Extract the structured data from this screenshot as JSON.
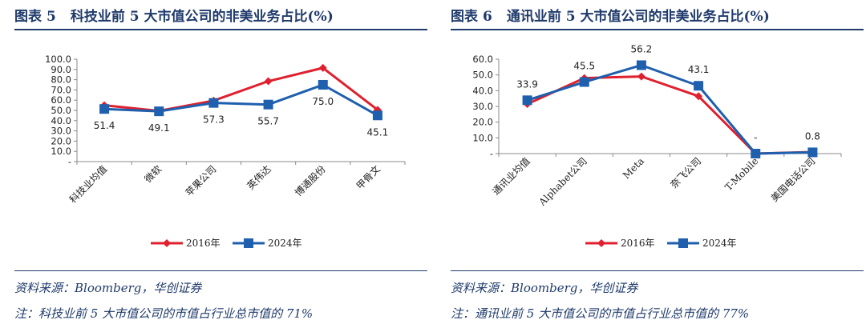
{
  "colors": {
    "series_2016": "#e0202e",
    "series_2024": "#1e5fae",
    "title": "#1f3a6b"
  },
  "panels": [
    {
      "title_prefix": "图表",
      "title_num": "5",
      "title_text": "科技业前 5 大市值公司的非美业务占比(%)",
      "source": "资料来源：Bloomberg，华创证券",
      "note": "注：科技业前 5 大市值公司的市值占行业总市值的 71%",
      "chart_data": {
        "type": "line",
        "categories": [
          "科技业均值",
          "微软",
          "苹果公司",
          "英伟达",
          "博通股份",
          "甲骨文"
        ],
        "y_ticks": [
          "100.0",
          "90.0",
          "80.0",
          "70.0",
          "60.0",
          "50.0",
          "40.0",
          "30.0",
          "20.0",
          "10.0",
          "-"
        ],
        "ylim": [
          0,
          100
        ],
        "series": [
          {
            "name": "2016年",
            "values": [
              55.0,
              49.5,
              59.5,
              78.5,
              91.5,
              50.5
            ]
          },
          {
            "name": "2024年",
            "values": [
              51.4,
              49.1,
              57.3,
              55.7,
              75.0,
              45.1
            ]
          }
        ],
        "data_labels": [
          "51.4",
          "49.1",
          "57.3",
          "55.7",
          "75.0",
          "45.1"
        ],
        "legend": "bottom-center"
      }
    },
    {
      "title_prefix": "图表",
      "title_num": "6",
      "title_text": "通讯业前 5 大市值公司的非美业务占比(%)",
      "source": "资料来源：Bloomberg，华创证券",
      "note": "注：通讯业前 5 大市值公司的市值占行业总市值的 77%",
      "chart_data": {
        "type": "line",
        "categories": [
          "通讯业均值",
          "Alphabet公司",
          "Meta",
          "奈飞公司",
          "T-Mobile",
          "美国电话公司"
        ],
        "y_ticks": [
          "60.0",
          "50.0",
          "40.0",
          "30.0",
          "20.0",
          "10.0",
          "-"
        ],
        "ylim": [
          0,
          60
        ],
        "series": [
          {
            "name": "2016年",
            "values": [
              31.5,
              48.0,
              49.0,
              36.5,
              0.0,
              1.0
            ]
          },
          {
            "name": "2024年",
            "values": [
              33.9,
              45.5,
              56.2,
              43.1,
              0.0,
              0.8
            ]
          }
        ],
        "data_labels": [
          "33.9",
          "45.5",
          "56.2",
          "43.1",
          "-",
          "0.8"
        ],
        "legend": "bottom-center"
      }
    }
  ]
}
